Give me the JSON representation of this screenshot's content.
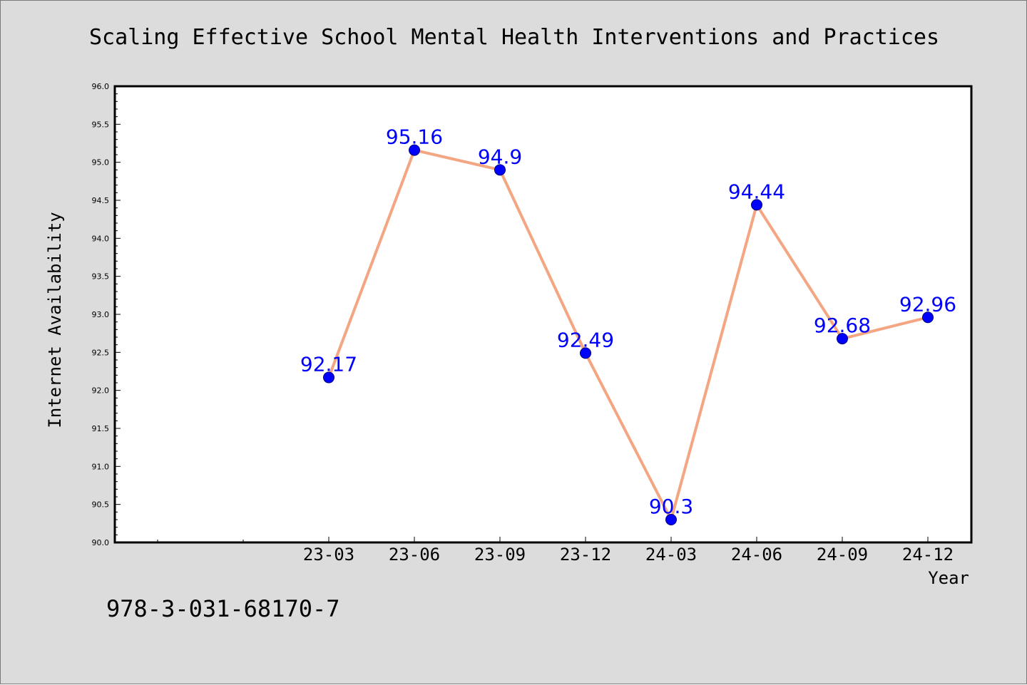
{
  "title": "Scaling Effective School Mental Health Interventions and Practices",
  "footer_text": "978-3-031-68170-7",
  "colors": {
    "figure_background": "#dcdcdc",
    "plot_background": "#ffffff",
    "line": "#f4a582",
    "marker": "#0000ff",
    "data_label": "#0000ff"
  },
  "chart_data": {
    "type": "line",
    "title": "Scaling Effective School Mental Health Interventions and Practices",
    "xlabel": "Year",
    "ylabel": "Internet Availability",
    "categories": [
      "23-03",
      "23-06",
      "23-09",
      "23-12",
      "24-03",
      "24-06",
      "24-09",
      "24-12"
    ],
    "series": [
      {
        "values": [
          92.17,
          95.16,
          94.9,
          92.49,
          90.3,
          94.44,
          92.68,
          92.96
        ]
      }
    ],
    "data_labels": [
      "92.17",
      "95.16",
      "94.9",
      "92.49",
      "90.3",
      "94.44",
      "92.68",
      "92.96"
    ],
    "ylim": [
      90.0,
      96.0
    ],
    "yticks": [
      "90.0",
      "90.5",
      "91.0",
      "91.5",
      "92.0",
      "92.5",
      "93.0",
      "93.5",
      "94.0",
      "94.5",
      "95.0",
      "95.5",
      "96.0"
    ],
    "grid": false,
    "legend": "none"
  }
}
